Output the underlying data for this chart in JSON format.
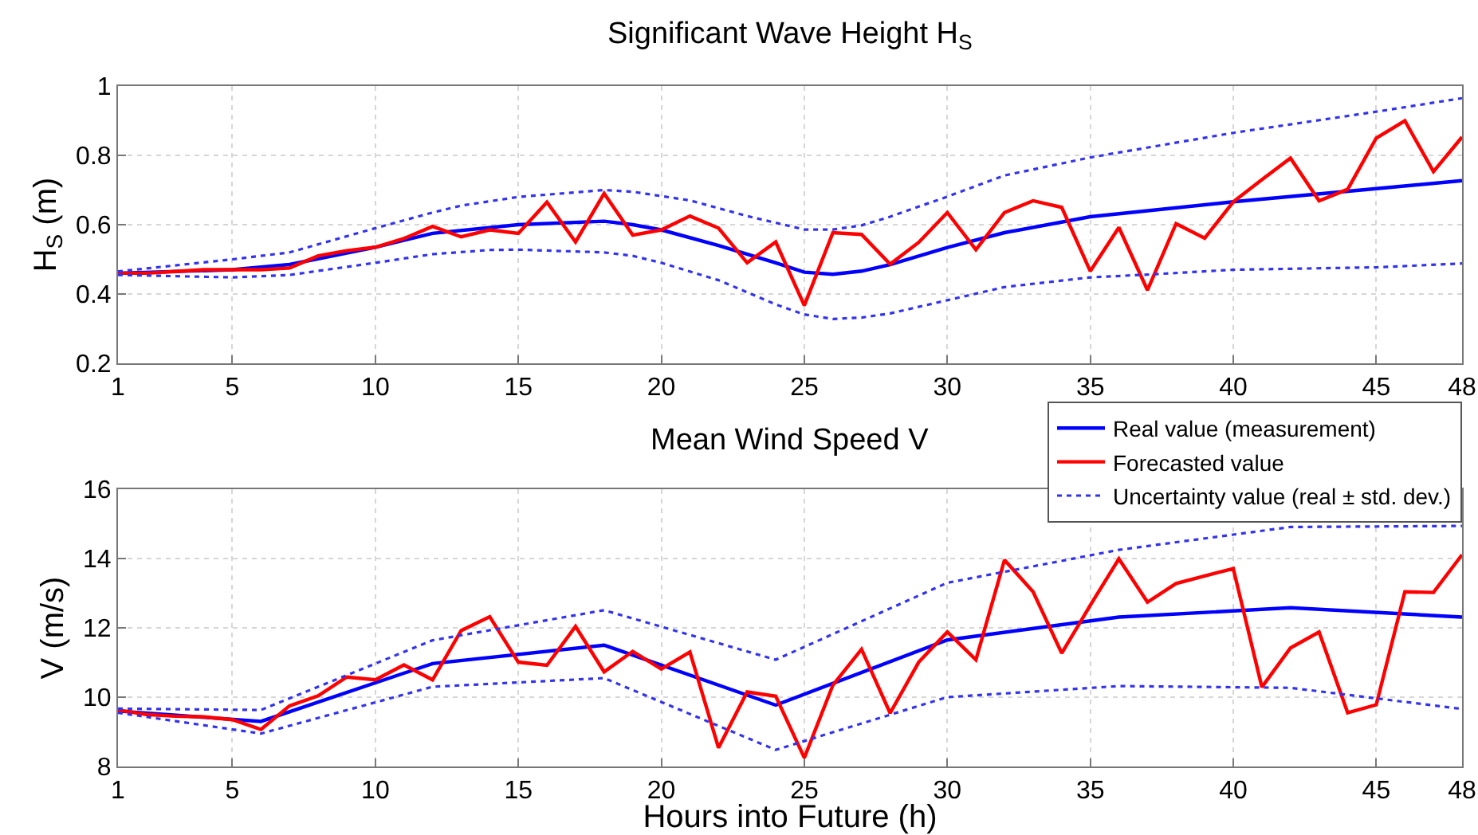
{
  "chart_data": [
    {
      "type": "line",
      "title": "Significant Wave Height H$_{S}$",
      "ylabel": "H$_{S}$ (m)",
      "xlim": [
        1,
        48
      ],
      "xticks": [
        1,
        5,
        10,
        15,
        20,
        25,
        30,
        35,
        40,
        45,
        48
      ],
      "ylim": [
        0.2,
        1
      ],
      "yticks": [
        0.2,
        0.4,
        0.6,
        0.8,
        1
      ],
      "grid": true,
      "legend": false,
      "series": [
        {
          "color": "#0000ff",
          "line_style": "solid",
          "x": [
            1,
            5,
            7,
            10,
            12,
            15,
            18,
            19,
            20,
            22,
            24,
            25,
            26,
            27,
            28,
            30,
            32,
            35,
            40,
            45,
            48
          ],
          "values": [
            0.46,
            0.47,
            0.485,
            0.535,
            0.575,
            0.6,
            0.61,
            0.6,
            0.585,
            0.54,
            0.49,
            0.463,
            0.457,
            0.466,
            0.485,
            0.534,
            0.577,
            0.623,
            0.666,
            0.704,
            0.727
          ]
        },
        {
          "color": "#ff0000",
          "line_style": "solid",
          "x": [
            1,
            2,
            3,
            4,
            5,
            6,
            7,
            8,
            9,
            10,
            11,
            12,
            13,
            14,
            15,
            16,
            17,
            18,
            19,
            20,
            21,
            22,
            23,
            24,
            25,
            26,
            27,
            28,
            29,
            30,
            31,
            32,
            33,
            34,
            35,
            36,
            37,
            38,
            39,
            40,
            41,
            42,
            43,
            44,
            45,
            46,
            47,
            48
          ],
          "values": [
            0.46,
            0.46,
            0.465,
            0.47,
            0.47,
            0.47,
            0.475,
            0.51,
            0.525,
            0.535,
            0.56,
            0.595,
            0.565,
            0.585,
            0.575,
            0.665,
            0.55,
            0.69,
            0.57,
            0.585,
            0.625,
            0.59,
            0.49,
            0.55,
            0.367,
            0.577,
            0.572,
            0.486,
            0.549,
            0.635,
            0.528,
            0.635,
            0.669,
            0.65,
            0.466,
            0.592,
            0.411,
            0.603,
            0.561,
            0.666,
            0.73,
            0.792,
            0.669,
            0.702,
            0.85,
            0.9,
            0.753,
            0.853
          ]
        },
        {
          "color": "#3333ee",
          "line_style": "dotted",
          "x": [
            1,
            5,
            7,
            10,
            12,
            13,
            15,
            18,
            19,
            21,
            23,
            25,
            26,
            27,
            28,
            30,
            32,
            35,
            40,
            45,
            48
          ],
          "values": [
            0.465,
            0.5,
            0.52,
            0.59,
            0.635,
            0.655,
            0.68,
            0.7,
            0.695,
            0.67,
            0.625,
            0.586,
            0.586,
            0.598,
            0.623,
            0.681,
            0.742,
            0.794,
            0.865,
            0.926,
            0.965
          ]
        },
        {
          "color": "#3333ee",
          "line_style": "dotted",
          "x": [
            1,
            5,
            7,
            10,
            12,
            14,
            15,
            18,
            19,
            20,
            22,
            24,
            25,
            26,
            27,
            28,
            30,
            32,
            35,
            37,
            40,
            45,
            48
          ],
          "values": [
            0.455,
            0.448,
            0.455,
            0.49,
            0.515,
            0.527,
            0.528,
            0.52,
            0.51,
            0.49,
            0.44,
            0.37,
            0.341,
            0.328,
            0.332,
            0.344,
            0.382,
            0.42,
            0.448,
            0.456,
            0.47,
            0.477,
            0.488
          ]
        }
      ]
    },
    {
      "type": "line",
      "title": "Mean Wind Speed V",
      "xlabel": "Hours into Future (h)",
      "ylabel": "V (m/s)",
      "xlim": [
        1,
        48
      ],
      "xticks": [
        1,
        5,
        10,
        15,
        20,
        25,
        30,
        35,
        40,
        45,
        48
      ],
      "ylim": [
        8,
        16
      ],
      "yticks": [
        8,
        10,
        12,
        14,
        16
      ],
      "grid": true,
      "legend": "top right",
      "series": [
        {
          "name": "Real value (measurement)",
          "color": "#0000ff",
          "line_style": "solid",
          "x": [
            1,
            6,
            12,
            18,
            24,
            30,
            36,
            42,
            48
          ],
          "values": [
            9.6,
            9.3,
            10.97,
            11.5,
            9.77,
            11.65,
            12.31,
            12.58,
            12.31
          ]
        },
        {
          "name": "Forecasted value",
          "color": "#ff0000",
          "line_style": "solid",
          "x": [
            1,
            2,
            3,
            4,
            5,
            6,
            7,
            8,
            9,
            10,
            11,
            12,
            13,
            14,
            15,
            16,
            17,
            18,
            19,
            20,
            21,
            22,
            23,
            24,
            25,
            26,
            27,
            28,
            29,
            30,
            31,
            32,
            33,
            34,
            35,
            36,
            37,
            38,
            39,
            40,
            41,
            42,
            43,
            44,
            45,
            46,
            47,
            48
          ],
          "values": [
            9.63,
            9.5,
            9.45,
            9.43,
            9.35,
            9.07,
            9.75,
            10.04,
            10.58,
            10.5,
            10.93,
            10.5,
            11.92,
            12.32,
            11.01,
            10.92,
            12.04,
            10.73,
            11.32,
            10.81,
            11.3,
            8.54,
            10.15,
            10.03,
            8.25,
            10.35,
            11.38,
            9.54,
            11.01,
            11.88,
            11.08,
            13.96,
            13.04,
            11.27,
            12.65,
            13.99,
            12.74,
            13.28,
            13.5,
            13.71,
            10.29,
            11.42,
            11.88,
            9.55,
            9.78,
            13.04,
            13.02,
            14.11
          ]
        },
        {
          "name": "Uncertainty value (real ± std. dev.)",
          "color": "#3333ee",
          "line_style": "dotted",
          "x": [
            1,
            6,
            12,
            18,
            24,
            30,
            36,
            42,
            48
          ],
          "values": [
            9.67,
            9.63,
            11.64,
            12.51,
            11.08,
            13.3,
            14.25,
            14.91,
            14.94
          ]
        },
        {
          "color": "#3333ee",
          "line_style": "dotted",
          "x": [
            1,
            6,
            12,
            18,
            24,
            30,
            36,
            42,
            48
          ],
          "values": [
            9.55,
            8.95,
            10.3,
            10.55,
            8.48,
            10.0,
            10.32,
            10.27,
            9.66
          ]
        }
      ]
    }
  ]
}
